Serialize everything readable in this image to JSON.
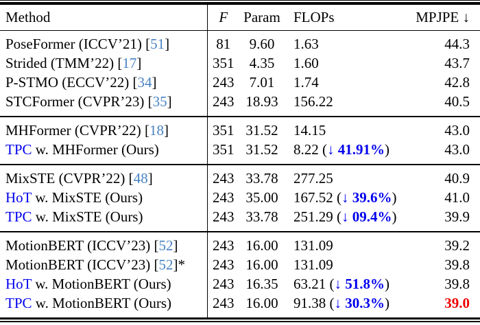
{
  "table": {
    "colors": {
      "accent_blue": "#0000ee",
      "cite_blue": "#4682c4",
      "highlight_red": "#ee0000",
      "rule_black": "#000000"
    },
    "arrow_down": "↓",
    "columns": [
      {
        "key": "method",
        "label": "Method"
      },
      {
        "key": "f",
        "label": "F"
      },
      {
        "key": "param",
        "label": "Param"
      },
      {
        "key": "flops",
        "label": "FLOPs"
      },
      {
        "key": "mpjpe",
        "label": "MPJPE ↓"
      }
    ],
    "sections": [
      {
        "rows": [
          {
            "method": [
              [
                "PoseFormer (ICCV’21) [",
                "t"
              ],
              [
                "51",
                "c"
              ],
              [
                "]",
                "t"
              ]
            ],
            "f": "81",
            "param": "9.60",
            "flops": "1.63",
            "reduction": null,
            "mpjpe": "44.3",
            "mpjpe_highlight": false
          },
          {
            "method": [
              [
                "Strided (TMM’22) [",
                "t"
              ],
              [
                "17",
                "c"
              ],
              [
                "]",
                "t"
              ]
            ],
            "f": "351",
            "param": "4.35",
            "flops": "1.60",
            "reduction": null,
            "mpjpe": "43.7",
            "mpjpe_highlight": false
          },
          {
            "method": [
              [
                "P-STMO (ECCV’22) [",
                "t"
              ],
              [
                "34",
                "c"
              ],
              [
                "]",
                "t"
              ]
            ],
            "f": "243",
            "param": "7.01",
            "flops": "1.74",
            "reduction": null,
            "mpjpe": "42.8",
            "mpjpe_highlight": false
          },
          {
            "method": [
              [
                "STCFormer (CVPR’23) [",
                "t"
              ],
              [
                "35",
                "c"
              ],
              [
                "]",
                "t"
              ]
            ],
            "f": "243",
            "param": "18.93",
            "flops": "156.22",
            "reduction": null,
            "mpjpe": "40.5",
            "mpjpe_highlight": false
          }
        ]
      },
      {
        "rows": [
          {
            "method": [
              [
                "MHFormer (CVPR’22) [",
                "t"
              ],
              [
                "18",
                "c"
              ],
              [
                "]",
                "t"
              ]
            ],
            "f": "351",
            "param": "31.52",
            "flops": "14.15",
            "reduction": null,
            "mpjpe": "43.0",
            "mpjpe_highlight": false
          },
          {
            "method": [
              [
                "TPC",
                "a"
              ],
              [
                " w. MHFormer (Ours)",
                "t"
              ]
            ],
            "f": "351",
            "param": "31.52",
            "flops": "8.22",
            "reduction": "41.91%",
            "mpjpe": "43.0",
            "mpjpe_highlight": false
          }
        ]
      },
      {
        "rows": [
          {
            "method": [
              [
                "MixSTE (CVPR’22) [",
                "t"
              ],
              [
                "48",
                "c"
              ],
              [
                "]",
                "t"
              ]
            ],
            "f": "243",
            "param": "33.78",
            "flops": "277.25",
            "reduction": null,
            "mpjpe": "40.9",
            "mpjpe_highlight": false
          },
          {
            "method": [
              [
                "HoT",
                "a"
              ],
              [
                " w. MixSTE (Ours)",
                "t"
              ]
            ],
            "f": "243",
            "param": "35.00",
            "flops": "167.52",
            "reduction": "39.6%",
            "mpjpe": "41.0",
            "mpjpe_highlight": false
          },
          {
            "method": [
              [
                "TPC",
                "a"
              ],
              [
                " w. MixSTE (Ours)",
                "t"
              ]
            ],
            "f": "243",
            "param": "33.78",
            "flops": "251.29",
            "reduction": "09.4%",
            "mpjpe": "39.9",
            "mpjpe_highlight": false
          }
        ]
      },
      {
        "rows": [
          {
            "method": [
              [
                "MotionBERT (ICCV’23) [",
                "t"
              ],
              [
                "52",
                "c"
              ],
              [
                "]",
                "t"
              ]
            ],
            "f": "243",
            "param": "16.00",
            "flops": "131.09",
            "reduction": null,
            "mpjpe": "39.2",
            "mpjpe_highlight": false
          },
          {
            "method": [
              [
                "MotionBERT (ICCV’23) [",
                "t"
              ],
              [
                "52",
                "c"
              ],
              [
                "]*",
                "t"
              ]
            ],
            "f": "243",
            "param": "16.00",
            "flops": "131.09",
            "reduction": null,
            "mpjpe": "39.8",
            "mpjpe_highlight": false
          },
          {
            "method": [
              [
                "HoT",
                "a"
              ],
              [
                " w. MotionBERT (Ours)",
                "t"
              ]
            ],
            "f": "243",
            "param": "16.35",
            "flops": "63.21",
            "reduction": "51.8%",
            "mpjpe": "39.8",
            "mpjpe_highlight": false
          },
          {
            "method": [
              [
                "TPC",
                "a"
              ],
              [
                " w. MotionBERT (Ours)",
                "t"
              ]
            ],
            "f": "243",
            "param": "16.00",
            "flops": "91.38",
            "reduction": "30.3%",
            "mpjpe": "39.0",
            "mpjpe_highlight": true
          }
        ]
      }
    ]
  }
}
